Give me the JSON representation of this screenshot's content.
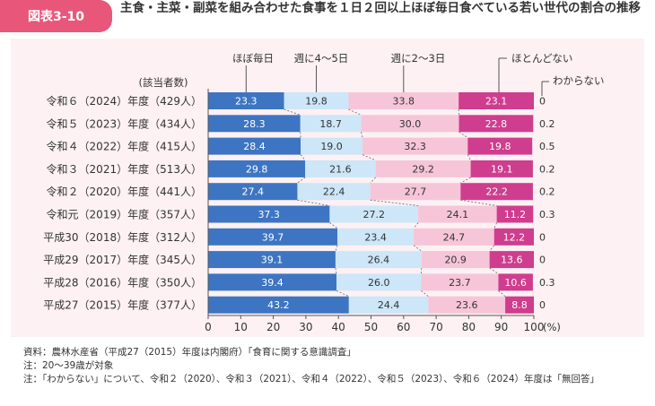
{
  "header": {
    "badge": "図表3-10",
    "title": "主食・主菜・副菜を組み合わせた食事を１日２回以上ほぼ毎日食べている若い世代の割合の推移"
  },
  "chart_data": {
    "type": "bar",
    "orientation": "horizontal",
    "stacked": true,
    "row_header": "(該当者数)",
    "categories": [
      "令和６（2024）年度（429人）",
      "令和５（2023）年度（434人）",
      "令和４（2022）年度（415人）",
      "令和３（2021）年度（513人）",
      "令和２（2020）年度（441人）",
      "令和元（2019）年度（357人）",
      "平成30（2018）年度（312人）",
      "平成29（2017）年度（345人）",
      "平成28（2016）年度（350人）",
      "平成27（2015）年度（377人）"
    ],
    "series": [
      {
        "name": "ほぼ毎日",
        "color": "#3d75c2",
        "values": [
          23.3,
          28.3,
          28.4,
          29.8,
          27.4,
          37.3,
          39.7,
          39.1,
          39.4,
          43.2
        ]
      },
      {
        "name": "週に4〜5日",
        "color": "#cde6f8",
        "values": [
          19.8,
          18.7,
          19.0,
          21.6,
          22.4,
          27.2,
          23.4,
          26.4,
          26.0,
          24.4
        ]
      },
      {
        "name": "週に2〜3日",
        "color": "#f6c5d8",
        "values": [
          33.8,
          30.0,
          32.3,
          29.2,
          27.7,
          24.1,
          24.7,
          20.9,
          23.7,
          23.6
        ]
      },
      {
        "name": "ほとんどない",
        "color": "#cf3d8e",
        "values": [
          23.1,
          22.8,
          19.8,
          19.1,
          22.2,
          11.2,
          12.2,
          13.6,
          10.6,
          8.8
        ]
      }
    ],
    "extra_series": {
      "name": "わからない",
      "values": [
        "0",
        "0.2",
        "0.5",
        "0.2",
        "0.2",
        "0.3",
        "0",
        "0",
        "0.3",
        "0"
      ]
    },
    "xlim": [
      0,
      100
    ],
    "x_ticks": [
      "0",
      "10",
      "20",
      "30",
      "40",
      "50",
      "60",
      "70",
      "80",
      "90",
      "100"
    ],
    "x_unit": "(%)"
  },
  "notes": [
    "資料：農林水産省（平成27（2015）年度は内閣府）「食育に関する意識調査」",
    "注：20〜39歳が対象",
    "注：「わからない」について、令和２（2020）、令和３（2021）、令和４（2022）、令和５（2023）、令和６（2024）年度は「無回答」"
  ]
}
